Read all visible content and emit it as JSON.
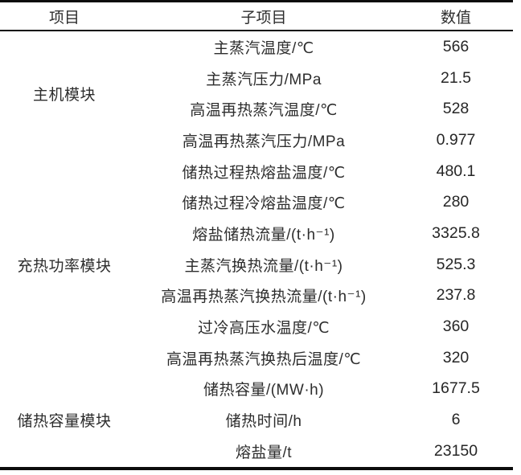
{
  "table": {
    "headers": [
      "项目",
      "子项目",
      "数值"
    ],
    "groups": [
      {
        "label": "主机模块",
        "rowspan": 4
      },
      {
        "label": "充热功率模块",
        "rowspan": 7
      },
      {
        "label": "储热容量模块",
        "rowspan": 3
      }
    ],
    "rows": [
      {
        "sub_item": "主蒸汽温度/℃",
        "value": "566"
      },
      {
        "sub_item": "主蒸汽压力/MPa",
        "value": "21.5"
      },
      {
        "sub_item": "高温再热蒸汽温度/℃",
        "value": "528"
      },
      {
        "sub_item": "高温再热蒸汽压力/MPa",
        "value": "0.977"
      },
      {
        "sub_item": "储热过程热熔盐温度/℃",
        "value": "480.1"
      },
      {
        "sub_item": "储热过程冷熔盐温度/℃",
        "value": "280"
      },
      {
        "sub_item": "熔盐储热流量/(t·h⁻¹)",
        "value": "3325.8"
      },
      {
        "sub_item": "主蒸汽换热流量/(t·h⁻¹)",
        "value": "525.3"
      },
      {
        "sub_item": "高温再热蒸汽换热流量/(t·h⁻¹)",
        "value": "237.8"
      },
      {
        "sub_item": "过冷高压水温度/℃",
        "value": "360"
      },
      {
        "sub_item": "高温再热蒸汽换热后温度/℃",
        "value": "320"
      },
      {
        "sub_item": "储热容量/(MW·h)",
        "value": "1677.5"
      },
      {
        "sub_item": "储热时间/h",
        "value": "6"
      },
      {
        "sub_item": "熔盐量/t",
        "value": "23150"
      }
    ],
    "colors": {
      "border": "#0c0c0c",
      "text": "#2d2d2d",
      "background": "#ffffff"
    }
  }
}
